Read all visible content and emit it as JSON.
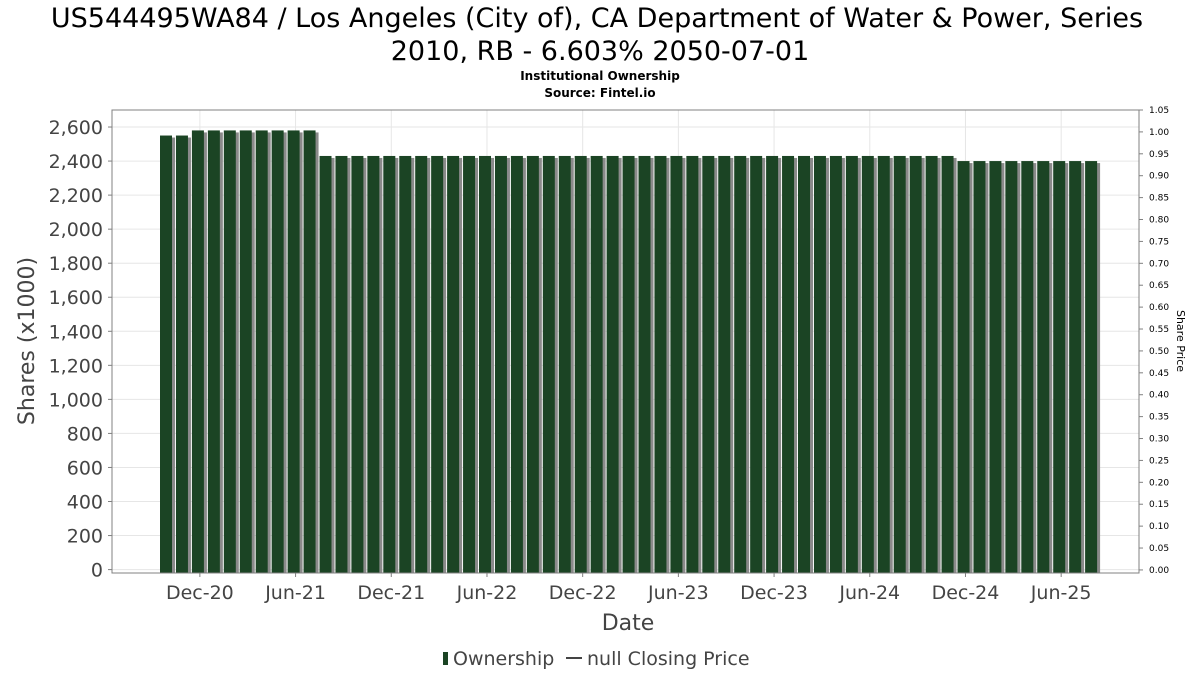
{
  "title_line1": "US544495WA84 / Los Angeles (City of), CA Department of Water & Power, Series",
  "title_line2": "2010, RB - 6.603% 2050-07-01",
  "subtitle": "Institutional Ownership",
  "source": "Source: Fintel.io",
  "colors": {
    "bar": "#1b4424",
    "bar_shadow": "#8a8a8a",
    "grid": "#e6e6e6",
    "frame": "#808080"
  },
  "chart_data": {
    "type": "bar",
    "xlabel": "Date",
    "ylabel": "Shares (x1000)",
    "y2label": "Share Price",
    "ylim": [
      -20,
      2700
    ],
    "y2lim": [
      -0.007,
      1.05
    ],
    "grid": true,
    "legend_position": "bottom",
    "yticks": [
      0,
      200,
      400,
      600,
      800,
      1000,
      1200,
      1400,
      1600,
      1800,
      2000,
      2200,
      2400,
      2600
    ],
    "ytick_labels": [
      "0",
      "200",
      "400",
      "600",
      "800",
      "1,000",
      "1,200",
      "1,400",
      "1,600",
      "1,800",
      "2,000",
      "2,200",
      "2,400",
      "2,600"
    ],
    "y2ticks": [
      0,
      0.05,
      0.1,
      0.15,
      0.2,
      0.25,
      0.3,
      0.35,
      0.4,
      0.45,
      0.5,
      0.55,
      0.6,
      0.65,
      0.7,
      0.75,
      0.8,
      0.85,
      0.9,
      0.95,
      1.0,
      1.05
    ],
    "y2tick_labels": [
      "0.00",
      "0.05",
      "0.10",
      "0.15",
      "0.20",
      "0.25",
      "0.30",
      "0.35",
      "0.40",
      "0.45",
      "0.50",
      "0.55",
      "0.60",
      "0.65",
      "0.70",
      "0.75",
      "0.80",
      "0.85",
      "0.90",
      "0.95",
      "1.00",
      "1.05"
    ],
    "xticks": [
      "Dec-20",
      "Jun-21",
      "Dec-21",
      "Jun-22",
      "Dec-22",
      "Jun-23",
      "Dec-23",
      "Jun-24",
      "Dec-24",
      "Jun-25"
    ],
    "xtick_bar_index": [
      2.5,
      8.5,
      14.5,
      20.5,
      26.5,
      32.5,
      38.5,
      44.5,
      50.5,
      56.5
    ],
    "series": [
      {
        "name": "Ownership",
        "values": [
          2550,
          2550,
          2580,
          2580,
          2580,
          2580,
          2580,
          2580,
          2580,
          2580,
          2430,
          2430,
          2430,
          2430,
          2430,
          2430,
          2430,
          2430,
          2430,
          2430,
          2430,
          2430,
          2430,
          2430,
          2430,
          2430,
          2430,
          2430,
          2430,
          2430,
          2430,
          2430,
          2430,
          2430,
          2430,
          2430,
          2430,
          2430,
          2430,
          2430,
          2430,
          2430,
          2430,
          2430,
          2430,
          2430,
          2430,
          2430,
          2430,
          2430,
          2400,
          2400,
          2400,
          2400,
          2400,
          2400,
          2400,
          2400,
          2400
        ]
      }
    ],
    "legend": [
      "Ownership",
      "null Closing Price"
    ]
  }
}
